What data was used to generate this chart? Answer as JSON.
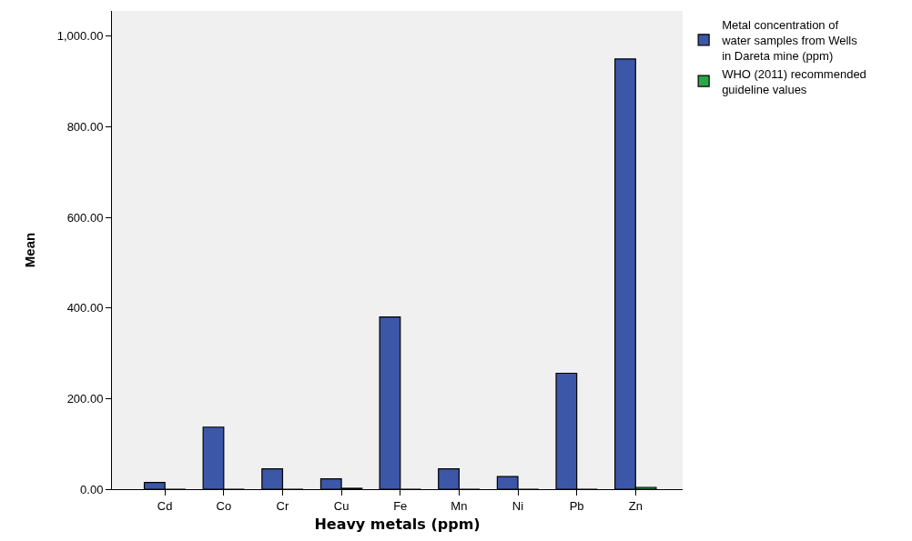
{
  "chart_data": {
    "type": "bar",
    "xlabel": "Heavy metals (ppm)",
    "ylabel": "Mean",
    "categories": [
      "Cd",
      "Co",
      "Cr",
      "Cu",
      "Fe",
      "Mn",
      "Ni",
      "Pb",
      "Zn"
    ],
    "series": [
      {
        "name": "Metal concentration of water samples from Wells in Dareta mine (ppm)",
        "color": "#3c56a8",
        "values": [
          15,
          137,
          45,
          23,
          380,
          45,
          28,
          256,
          950
        ]
      },
      {
        "name": "WHO (2011) recommended guideline values",
        "color": "#2aa845",
        "values": [
          0,
          0,
          0,
          2,
          0,
          0,
          0,
          0,
          4
        ]
      }
    ],
    "ylim": [
      0,
      1056
    ],
    "yticks": [
      {
        "value": 0,
        "label": "0.00"
      },
      {
        "value": 200,
        "label": "200.00"
      },
      {
        "value": 400,
        "label": "400.00"
      },
      {
        "value": 600,
        "label": "600.00"
      },
      {
        "value": 800,
        "label": "800.00"
      },
      {
        "value": 1000,
        "label": "1,000.00"
      }
    ],
    "grid": false,
    "legend": "top right"
  }
}
